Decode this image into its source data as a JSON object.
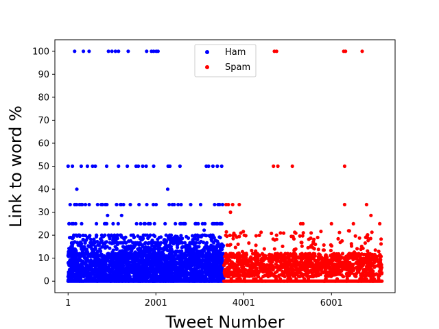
{
  "chart_data": {
    "type": "scatter",
    "xlabel": "Tweet Number",
    "ylabel": "Link to word %",
    "xlim": [
      -300,
      7450
    ],
    "ylim": [
      -5,
      105
    ],
    "x_ticks": [
      1,
      2001,
      4001,
      6001
    ],
    "x_tick_labels": [
      "1",
      "2001",
      "4001",
      "6001"
    ],
    "y_ticks": [
      0,
      10,
      20,
      30,
      40,
      50,
      60,
      70,
      80,
      90,
      100
    ],
    "y_tick_labels": [
      "0",
      "10",
      "20",
      "30",
      "40",
      "50",
      "60",
      "70",
      "80",
      "90",
      "100"
    ],
    "grid": false,
    "legend_position": "top-center",
    "colors": {
      "ham": "#0000ff",
      "spam": "#ff0000"
    },
    "series": [
      {
        "name": "Ham",
        "color": "#0000ff",
        "x_range": [
          1,
          3550
        ],
        "common_levels": [
          0,
          1,
          2,
          3,
          4,
          5,
          6,
          7,
          8,
          9,
          10,
          11,
          12,
          13,
          14,
          15,
          16.7,
          20,
          25,
          33.3
        ],
        "points": [
          [
            150,
            100
          ],
          [
            350,
            100
          ],
          [
            480,
            100
          ],
          [
            920,
            100
          ],
          [
            1000,
            100
          ],
          [
            1080,
            100
          ],
          [
            1150,
            100
          ],
          [
            1370,
            100
          ],
          [
            1790,
            100
          ],
          [
            1900,
            100
          ],
          [
            1950,
            100
          ],
          [
            2010,
            100
          ],
          [
            2050,
            100
          ],
          [
            1,
            50
          ],
          [
            100,
            50
          ],
          [
            300,
            50
          ],
          [
            440,
            50
          ],
          [
            560,
            50
          ],
          [
            620,
            50
          ],
          [
            880,
            50
          ],
          [
            1150,
            50
          ],
          [
            1350,
            50
          ],
          [
            1550,
            50
          ],
          [
            1600,
            50
          ],
          [
            1700,
            50
          ],
          [
            1780,
            50
          ],
          [
            1950,
            50
          ],
          [
            2280,
            50
          ],
          [
            2320,
            50
          ],
          [
            2550,
            50
          ],
          [
            3150,
            50
          ],
          [
            3200,
            50
          ],
          [
            3300,
            50
          ],
          [
            3400,
            50
          ],
          [
            3500,
            50
          ],
          [
            200,
            40
          ],
          [
            2270,
            40
          ],
          [
            900,
            28.6
          ],
          [
            1220,
            28.6
          ],
          [
            3100,
            22.2
          ]
        ]
      },
      {
        "name": "Spam",
        "color": "#ff0000",
        "x_range": [
          3550,
          7150
        ],
        "common_levels": [
          0,
          1,
          2,
          3,
          4,
          5,
          6,
          7,
          8,
          9,
          10,
          11,
          12,
          14,
          16.7,
          20,
          25
        ],
        "points": [
          [
            4700,
            100
          ],
          [
            4750,
            100
          ],
          [
            6280,
            100
          ],
          [
            6320,
            100
          ],
          [
            6700,
            100
          ],
          [
            4680,
            50
          ],
          [
            4780,
            50
          ],
          [
            5110,
            50
          ],
          [
            6300,
            50
          ],
          [
            3600,
            33.3
          ],
          [
            3650,
            33.3
          ],
          [
            3750,
            33.3
          ],
          [
            3900,
            33.3
          ],
          [
            6300,
            33.3
          ],
          [
            6800,
            33.3
          ],
          [
            5300,
            25
          ],
          [
            5350,
            25
          ],
          [
            6000,
            25
          ],
          [
            6500,
            25
          ],
          [
            7100,
            25
          ],
          [
            3700,
            30
          ],
          [
            4750,
            20
          ],
          [
            6900,
            28.6
          ],
          [
            5600,
            18.2
          ],
          [
            4200,
            6.7
          ]
        ]
      }
    ]
  }
}
